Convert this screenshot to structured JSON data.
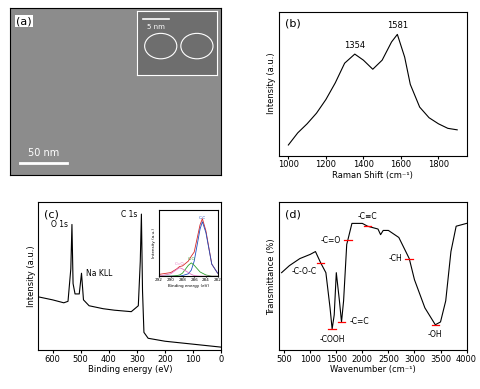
{
  "chart_data": [
    {
      "type": "image",
      "label": "(a)",
      "scale_bar": "50 nm",
      "inset": {
        "scale_bar": "5 nm"
      }
    },
    {
      "type": "line",
      "label": "(b)",
      "x_label": "Raman Shift (cm⁻¹)",
      "y_label": "Intensity (a.u.)",
      "x": [
        1000,
        1050,
        1100,
        1150,
        1200,
        1250,
        1300,
        1354,
        1400,
        1450,
        1500,
        1550,
        1581,
        1620,
        1650,
        1700,
        1750,
        1800,
        1850,
        1900
      ],
      "values": [
        0.22,
        0.3,
        0.36,
        0.43,
        0.52,
        0.63,
        0.76,
        0.82,
        0.78,
        0.72,
        0.78,
        0.9,
        0.95,
        0.8,
        0.62,
        0.47,
        0.4,
        0.36,
        0.33,
        0.32
      ],
      "color": "#000000",
      "xlim": [
        950,
        1950
      ],
      "xticks": [
        1000,
        1200,
        1400,
        1600,
        1800
      ],
      "ylim": [
        0.15,
        1.1
      ],
      "tick_labels": "x",
      "peaks": [
        1354,
        1581
      ]
    },
    {
      "type": "line",
      "label": "(c)",
      "x_label": "Binding energy (eV)",
      "y_label": "Intensity (a.u.)",
      "x": [
        650,
        600,
        560,
        545,
        535,
        531,
        527,
        520,
        505,
        497,
        490,
        470,
        420,
        380,
        320,
        295,
        288,
        284,
        280,
        275,
        260,
        200,
        150,
        100,
        50,
        0
      ],
      "values": [
        0.36,
        0.34,
        0.32,
        0.33,
        0.55,
        0.85,
        0.45,
        0.38,
        0.38,
        0.52,
        0.34,
        0.3,
        0.28,
        0.27,
        0.26,
        0.3,
        0.6,
        0.92,
        0.4,
        0.12,
        0.08,
        0.06,
        0.05,
        0.04,
        0.03,
        0.02
      ],
      "color": "#000000",
      "xlim": [
        650,
        0
      ],
      "xticks": [
        600,
        500,
        400,
        300,
        200,
        100,
        0
      ],
      "ylim": [
        0,
        1.0
      ],
      "tick_labels": "x",
      "annotations": [
        {
          "x": 531,
          "text": "O 1s"
        },
        {
          "x": 497,
          "text": "Na KLL"
        },
        {
          "x": 284,
          "text": "C 1s"
        }
      ],
      "inset": {
        "type": "line",
        "x_label": "Binding energy (eV)",
        "y_label": "Intensity (a.u.)",
        "x": [
          282,
          283,
          284,
          284.6,
          285,
          286,
          286.5,
          287,
          288,
          288.5,
          289,
          290,
          292
        ],
        "xlim": [
          292,
          282
        ],
        "xticks": [
          292,
          290,
          288,
          286,
          284,
          282
        ],
        "ylim": [
          0,
          1.1
        ],
        "tick_labels": "x",
        "series": [
          {
            "color": "#d62728",
            "values": [
              0.05,
              0.2,
              0.75,
              0.95,
              0.85,
              0.4,
              0.33,
              0.25,
              0.17,
              0.16,
              0.12,
              0.06,
              0.03
            ]
          },
          {
            "name": "C-C",
            "color": "#1f4fbf",
            "values": [
              0.05,
              0.2,
              0.72,
              0.9,
              0.78,
              0.25,
              0.1,
              0.04,
              0.01,
              0,
              0,
              0,
              0
            ]
          },
          {
            "name": "C-O",
            "color": "#2ca02c",
            "values": [
              0,
              0,
              0.02,
              0.05,
              0.07,
              0.18,
              0.22,
              0.18,
              0.05,
              0.02,
              0.01,
              0,
              0
            ]
          },
          {
            "name": "C=O",
            "color": "#e377c2",
            "values": [
              0,
              0,
              0,
              0,
              0,
              0.01,
              0.03,
              0.06,
              0.12,
              0.14,
              0.11,
              0.04,
              0
            ]
          }
        ]
      }
    },
    {
      "type": "line",
      "label": "(d)",
      "x_label": "Wavenumber (cm⁻¹)",
      "y_label": "Transmittance (%)",
      "x": [
        450,
        600,
        800,
        1000,
        1100,
        1200,
        1300,
        1380,
        1420,
        1460,
        1500,
        1560,
        1600,
        1640,
        1700,
        1800,
        2000,
        2100,
        2200,
        2300,
        2350,
        2400,
        2500,
        2700,
        2900,
        3000,
        3200,
        3400,
        3500,
        3600,
        3700,
        3800,
        4000
      ],
      "values": [
        0.55,
        0.6,
        0.65,
        0.68,
        0.7,
        0.62,
        0.55,
        0.3,
        0.15,
        0.25,
        0.55,
        0.35,
        0.2,
        0.35,
        0.75,
        0.9,
        0.9,
        0.88,
        0.87,
        0.86,
        0.82,
        0.85,
        0.85,
        0.8,
        0.65,
        0.5,
        0.3,
        0.18,
        0.2,
        0.35,
        0.7,
        0.88,
        0.9
      ],
      "color": "#000000",
      "xlim": [
        400,
        4000
      ],
      "xticks": [
        500,
        1000,
        1500,
        2000,
        2500,
        3000,
        3500,
        4000
      ],
      "ylim": [
        0,
        1.05
      ],
      "tick_labels": "x",
      "annotations": [
        {
          "x": 1200,
          "text": "-C-O-C"
        },
        {
          "x": 1720,
          "text": "-C=O"
        },
        {
          "x": 2100,
          "text": "-C≡C"
        },
        {
          "x": 2900,
          "text": "-CH"
        },
        {
          "x": 3400,
          "text": "-OH"
        },
        {
          "x": 1420,
          "text": "-COOH"
        },
        {
          "x": 1600,
          "text": "-C=C"
        }
      ]
    }
  ]
}
